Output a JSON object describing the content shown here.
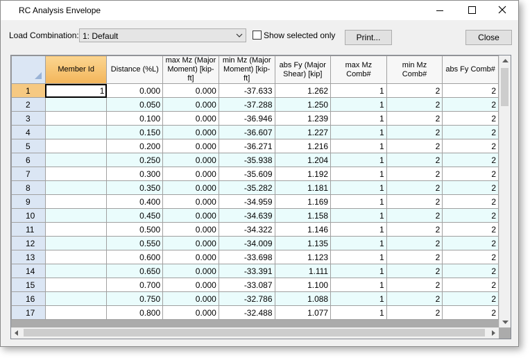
{
  "window": {
    "title": "RC Analysis Envelope"
  },
  "toolbar": {
    "load_combination_label": "Load Combination:",
    "load_combination_value": "1: Default",
    "show_selected_label": "Show selected only",
    "print_button": "Print...",
    "close_button": "Close"
  },
  "table": {
    "columns": [
      "Member Id",
      "Distance (%L)",
      "max Mz (Major Moment) [kip-ft]",
      "min Mz (Major Moment) [kip-ft]",
      "abs Fy (Major Shear) [kip]",
      "max Mz Comb#",
      "min Mz Comb#",
      "abs Fy Comb#"
    ],
    "rows": [
      [
        "1",
        "1",
        "0.000",
        "0.000",
        "-37.633",
        "1.262",
        "1",
        "2",
        "2"
      ],
      [
        "2",
        null,
        "0.050",
        "0.000",
        "-37.288",
        "1.250",
        "1",
        "2",
        "2"
      ],
      [
        "3",
        null,
        "0.100",
        "0.000",
        "-36.946",
        "1.239",
        "1",
        "2",
        "2"
      ],
      [
        "4",
        null,
        "0.150",
        "0.000",
        "-36.607",
        "1.227",
        "1",
        "2",
        "2"
      ],
      [
        "5",
        null,
        "0.200",
        "0.000",
        "-36.271",
        "1.216",
        "1",
        "2",
        "2"
      ],
      [
        "6",
        null,
        "0.250",
        "0.000",
        "-35.938",
        "1.204",
        "1",
        "2",
        "2"
      ],
      [
        "7",
        null,
        "0.300",
        "0.000",
        "-35.609",
        "1.192",
        "1",
        "2",
        "2"
      ],
      [
        "8",
        null,
        "0.350",
        "0.000",
        "-35.282",
        "1.181",
        "1",
        "2",
        "2"
      ],
      [
        "9",
        null,
        "0.400",
        "0.000",
        "-34.959",
        "1.169",
        "1",
        "2",
        "2"
      ],
      [
        "10",
        null,
        "0.450",
        "0.000",
        "-34.639",
        "1.158",
        "1",
        "2",
        "2"
      ],
      [
        "11",
        null,
        "0.500",
        "0.000",
        "-34.322",
        "1.146",
        "1",
        "2",
        "2"
      ],
      [
        "12",
        null,
        "0.550",
        "0.000",
        "-34.009",
        "1.135",
        "1",
        "2",
        "2"
      ],
      [
        "13",
        null,
        "0.600",
        "0.000",
        "-33.698",
        "1.123",
        "1",
        "2",
        "2"
      ],
      [
        "14",
        null,
        "0.650",
        "0.000",
        "-33.391",
        "1.111",
        "1",
        "2",
        "2"
      ],
      [
        "15",
        null,
        "0.700",
        "0.000",
        "-33.087",
        "1.100",
        "1",
        "2",
        "2"
      ],
      [
        "16",
        null,
        "0.750",
        "0.000",
        "-32.786",
        "1.088",
        "1",
        "2",
        "2"
      ],
      [
        "17",
        null,
        "0.800",
        "0.000",
        "-32.488",
        "1.077",
        "1",
        "2",
        "2"
      ]
    ]
  }
}
